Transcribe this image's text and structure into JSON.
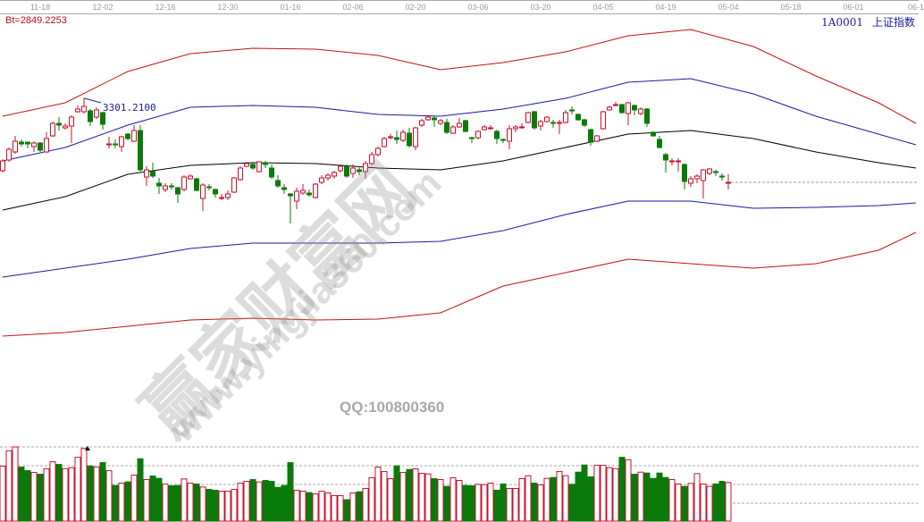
{
  "header": {
    "bt_label": "Bt=2849.2253",
    "stock_code": "1A0001",
    "stock_name": "上证指数",
    "max_label": "3301.2100"
  },
  "watermark": {
    "site_name": "赢家财富网",
    "url": "www.yingjia360.com",
    "qq": "QQ:100800360"
  },
  "colors": {
    "up": "#c8102e",
    "down": "#0a7a0a",
    "band_outer": "#c81010",
    "band_inner": "#1a1aa0",
    "middle": "#000000",
    "axis_text": "#9a9a9a"
  },
  "chart_data": {
    "type": "candlestick",
    "date_ticks": [
      {
        "label": "11-18",
        "day": 6
      },
      {
        "label": "12-02",
        "day": 16
      },
      {
        "label": "12-16",
        "day": 26
      },
      {
        "label": "12-30",
        "day": 36
      },
      {
        "label": "01-16",
        "day": 46
      },
      {
        "label": "02-06",
        "day": 56
      },
      {
        "label": "02-20",
        "day": 66
      },
      {
        "label": "03-06",
        "day": 76
      },
      {
        "label": "03-20",
        "day": 86
      },
      {
        "label": "04-05",
        "day": 96
      },
      {
        "label": "04-19",
        "day": 106
      },
      {
        "label": "05-04",
        "day": 116
      },
      {
        "label": "05-18",
        "day": 126
      },
      {
        "label": "06-01",
        "day": 136
      },
      {
        "label": "06-1",
        "day": 146
      }
    ],
    "max_marker": {
      "day": 13,
      "value": 3301.21
    },
    "candles_ohlc": [
      [
        3139,
        3161,
        3165,
        3135
      ],
      [
        3163,
        3187,
        3191,
        3159
      ],
      [
        3181,
        3205,
        3217,
        3177
      ],
      [
        3203,
        3199,
        3209,
        3193
      ],
      [
        3203,
        3199,
        3203,
        3189
      ],
      [
        3193,
        3201,
        3205,
        3181
      ],
      [
        3201,
        3185,
        3203,
        3181
      ],
      [
        3181,
        3211,
        3225,
        3179
      ],
      [
        3217,
        3245,
        3249,
        3215
      ],
      [
        3245,
        3241,
        3259,
        3229
      ],
      [
        3235,
        3239,
        3245,
        3231
      ],
      [
        3239,
        3259,
        3263,
        3201
      ],
      [
        3271,
        3277,
        3285,
        3269
      ],
      [
        3271,
        3283,
        3301,
        3267
      ],
      [
        3273,
        3249,
        3277,
        3239
      ],
      [
        3259,
        3275,
        3281,
        3255
      ],
      [
        3269,
        3243,
        3271,
        3231
      ],
      [
        3197,
        3199,
        3215,
        3189
      ],
      [
        3199,
        3197,
        3209,
        3189
      ],
      [
        3193,
        3215,
        3217,
        3181
      ],
      [
        3221,
        3211,
        3223,
        3207
      ],
      [
        3205,
        3229,
        3241,
        3203
      ],
      [
        3229,
        3141,
        3241,
        3137
      ],
      [
        3125,
        3141,
        3149,
        3105
      ],
      [
        3137,
        3127,
        3157,
        3123
      ],
      [
        3111,
        3105,
        3123,
        3087
      ],
      [
        3097,
        3105,
        3111,
        3091
      ],
      [
        3105,
        3103,
        3111,
        3097
      ],
      [
        3101,
        3087,
        3103,
        3067
      ],
      [
        3097,
        3125,
        3129,
        3093
      ],
      [
        3121,
        3127,
        3131,
        3119
      ],
      [
        3121,
        3095,
        3123,
        3093
      ],
      [
        3077,
        3107,
        3111,
        3049
      ],
      [
        3103,
        3101,
        3109,
        3095
      ],
      [
        3097,
        3087,
        3099,
        3079
      ],
      [
        3077,
        3079,
        3087,
        3073
      ],
      [
        3079,
        3087,
        3095,
        3073
      ],
      [
        3091,
        3123,
        3125,
        3089
      ],
      [
        3119,
        3145,
        3149,
        3117
      ],
      [
        3149,
        3155,
        3159,
        3147
      ],
      [
        3153,
        3145,
        3157,
        3141
      ],
      [
        3137,
        3159,
        3161,
        3135
      ],
      [
        3157,
        3153,
        3161,
        3145
      ],
      [
        3145,
        3125,
        3153,
        3121
      ],
      [
        3117,
        3105,
        3129,
        3101
      ],
      [
        3101,
        3097,
        3109,
        3087
      ],
      [
        3087,
        3083,
        3089,
        3021
      ],
      [
        3071,
        3093,
        3101,
        3053
      ],
      [
        3089,
        3095,
        3109,
        3085
      ],
      [
        3089,
        3085,
        3097,
        3081
      ],
      [
        3079,
        3109,
        3111,
        3077
      ],
      [
        3113,
        3123,
        3129,
        3109
      ],
      [
        3123,
        3129,
        3133,
        3117
      ],
      [
        3127,
        3135,
        3139,
        3121
      ],
      [
        3139,
        3149,
        3153,
        3135
      ],
      [
        3149,
        3127,
        3153,
        3123
      ],
      [
        3133,
        3145,
        3153,
        3123
      ],
      [
        3141,
        3137,
        3149,
        3129
      ],
      [
        3137,
        3155,
        3161,
        3121
      ],
      [
        3155,
        3175,
        3181,
        3151
      ],
      [
        3175,
        3189,
        3193,
        3171
      ],
      [
        3193,
        3211,
        3215,
        3191
      ],
      [
        3213,
        3215,
        3221,
        3209
      ],
      [
        3213,
        3209,
        3229,
        3199
      ],
      [
        3207,
        3225,
        3231,
        3203
      ],
      [
        3223,
        3195,
        3235,
        3191
      ],
      [
        3193,
        3235,
        3237,
        3185
      ],
      [
        3241,
        3251,
        3255,
        3237
      ],
      [
        3253,
        3259,
        3263,
        3251
      ],
      [
        3257,
        3253,
        3263,
        3237
      ],
      [
        3245,
        3251,
        3255,
        3241
      ],
      [
        3247,
        3225,
        3255,
        3221
      ],
      [
        3223,
        3237,
        3241,
        3221
      ],
      [
        3237,
        3245,
        3257,
        3235
      ],
      [
        3251,
        3227,
        3253,
        3225
      ],
      [
        3213,
        3211,
        3215,
        3201
      ],
      [
        3213,
        3227,
        3229,
        3209
      ],
      [
        3231,
        3237,
        3241,
        3229
      ],
      [
        3233,
        3235,
        3241,
        3231
      ],
      [
        3227,
        3211,
        3231,
        3199
      ],
      [
        3209,
        3207,
        3211,
        3201
      ],
      [
        3205,
        3233,
        3241,
        3187
      ],
      [
        3233,
        3237,
        3241,
        3225
      ],
      [
        3235,
        3237,
        3245,
        3233
      ],
      [
        3247,
        3269,
        3271,
        3245
      ],
      [
        3271,
        3235,
        3273,
        3231
      ],
      [
        3239,
        3249,
        3253,
        3229
      ],
      [
        3249,
        3259,
        3261,
        3247
      ],
      [
        3247,
        3245,
        3253,
        3235
      ],
      [
        3245,
        3247,
        3253,
        3221
      ],
      [
        3247,
        3269,
        3275,
        3245
      ],
      [
        3275,
        3273,
        3283,
        3265
      ],
      [
        3265,
        3253,
        3267,
        3251
      ],
      [
        3253,
        3241,
        3255,
        3237
      ],
      [
        3231,
        3203,
        3233,
        3195
      ],
      [
        3205,
        3217,
        3219,
        3203
      ],
      [
        3233,
        3271,
        3273,
        3231
      ],
      [
        3275,
        3281,
        3285,
        3273
      ],
      [
        3285,
        3287,
        3293,
        3283
      ],
      [
        3287,
        3269,
        3289,
        3267
      ],
      [
        3267,
        3291,
        3293,
        3241
      ],
      [
        3285,
        3275,
        3287,
        3263
      ],
      [
        3267,
        3277,
        3281,
        3263
      ],
      [
        3277,
        3245,
        3279,
        3237
      ],
      [
        3225,
        3217,
        3227,
        3215
      ],
      [
        3209,
        3191,
        3217,
        3189
      ],
      [
        3175,
        3163,
        3179,
        3135
      ],
      [
        3159,
        3161,
        3167,
        3151
      ],
      [
        3159,
        3161,
        3167,
        3137
      ],
      [
        3153,
        3115,
        3155,
        3097
      ],
      [
        3111,
        3121,
        3127,
        3103
      ],
      [
        3121,
        3127,
        3131,
        3111
      ],
      [
        3117,
        3141,
        3143,
        3077
      ],
      [
        3133,
        3143,
        3145,
        3129
      ],
      [
        3137,
        3135,
        3141,
        3127
      ],
      [
        3127,
        3125,
        3133,
        3117
      ],
      [
        3111,
        3113,
        3131,
        3097
      ]
    ],
    "bands": {
      "days": [
        0,
        10,
        20,
        30,
        40,
        50,
        60,
        70,
        80,
        90,
        100,
        110,
        120,
        130,
        140,
        146
      ],
      "upper_outer": [
        3261,
        3291,
        3361,
        3401,
        3413,
        3411,
        3397,
        3365,
        3381,
        3405,
        3441,
        3455,
        3417,
        3351,
        3291,
        3245
      ],
      "upper_inner": [
        3161,
        3191,
        3241,
        3281,
        3285,
        3281,
        3265,
        3261,
        3277,
        3301,
        3337,
        3345,
        3311,
        3261,
        3221,
        3197
      ],
      "middle": [
        3051,
        3081,
        3131,
        3151,
        3157,
        3155,
        3145,
        3141,
        3161,
        3191,
        3221,
        3229,
        3211,
        3181,
        3157,
        3145
      ],
      "lower_inner": [
        2901,
        2921,
        2941,
        2965,
        2977,
        2977,
        2977,
        2981,
        3005,
        3041,
        3071,
        3071,
        3055,
        3057,
        3061,
        3067
      ],
      "lower_outer": [
        2769,
        2777,
        2791,
        2805,
        2809,
        2805,
        2807,
        2821,
        2881,
        2911,
        2941,
        2931,
        2921,
        2931,
        2961,
        3001
      ]
    },
    "volume": [
      185,
      237,
      250,
      182,
      170,
      164,
      158,
      176,
      200,
      191,
      177,
      180,
      215,
      245,
      186,
      182,
      197,
      170,
      120,
      128,
      132,
      155,
      210,
      140,
      152,
      144,
      125,
      119,
      120,
      142,
      128,
      125,
      115,
      107,
      104,
      101,
      101,
      107,
      128,
      134,
      140,
      132,
      137,
      134,
      114,
      120,
      197,
      104,
      101,
      96,
      92,
      101,
      95,
      86,
      86,
      72,
      95,
      99,
      110,
      146,
      182,
      167,
      143,
      186,
      164,
      174,
      176,
      161,
      159,
      143,
      140,
      117,
      146,
      137,
      120,
      119,
      124,
      123,
      128,
      104,
      125,
      110,
      110,
      143,
      153,
      128,
      122,
      144,
      147,
      167,
      153,
      124,
      165,
      189,
      149,
      188,
      188,
      180,
      177,
      215,
      207,
      158,
      165,
      162,
      144,
      162,
      147,
      140,
      125,
      117,
      127,
      160,
      125,
      117,
      125,
      134,
      130
    ],
    "volume_grid_levels": 4
  }
}
